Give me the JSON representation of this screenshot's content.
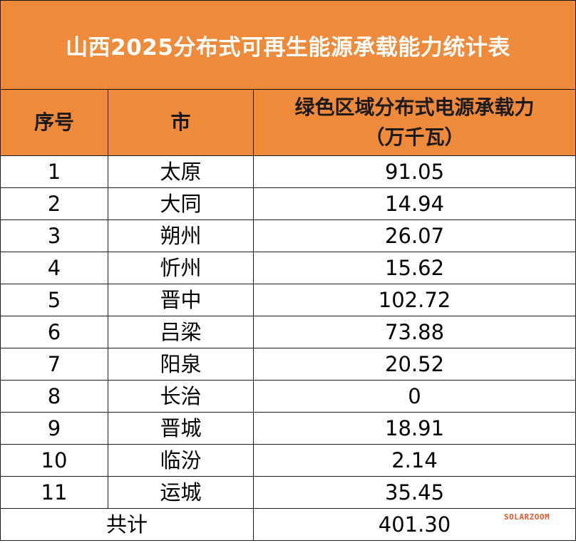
{
  "title": "山西2025分布式可再生能源承载能力统计表",
  "headers": {
    "index": "序号",
    "city": "市",
    "capacity_line1": "绿色区域分布式电源承载力",
    "capacity_line2": "（万千瓦）"
  },
  "rows": [
    {
      "index": "1",
      "city": "太原",
      "capacity": "91.05"
    },
    {
      "index": "2",
      "city": "大同",
      "capacity": "14.94"
    },
    {
      "index": "3",
      "city": "朔州",
      "capacity": "26.07"
    },
    {
      "index": "4",
      "city": "忻州",
      "capacity": "15.62"
    },
    {
      "index": "5",
      "city": "晋中",
      "capacity": "102.72"
    },
    {
      "index": "6",
      "city": "吕梁",
      "capacity": "73.88"
    },
    {
      "index": "7",
      "city": "阳泉",
      "capacity": "20.52"
    },
    {
      "index": "8",
      "city": "长治",
      "capacity": "0"
    },
    {
      "index": "9",
      "city": "晋城",
      "capacity": "18.91"
    },
    {
      "index": "10",
      "city": "临汾",
      "capacity": "2.14"
    },
    {
      "index": "11",
      "city": "运城",
      "capacity": "35.45"
    }
  ],
  "total": {
    "label": "共计",
    "capacity": "401.30"
  },
  "watermark": "SOLARZOOM",
  "colors": {
    "header_bg": "#ef8a3a",
    "title_text": "#ffffff",
    "watermark": "#e4572e"
  }
}
